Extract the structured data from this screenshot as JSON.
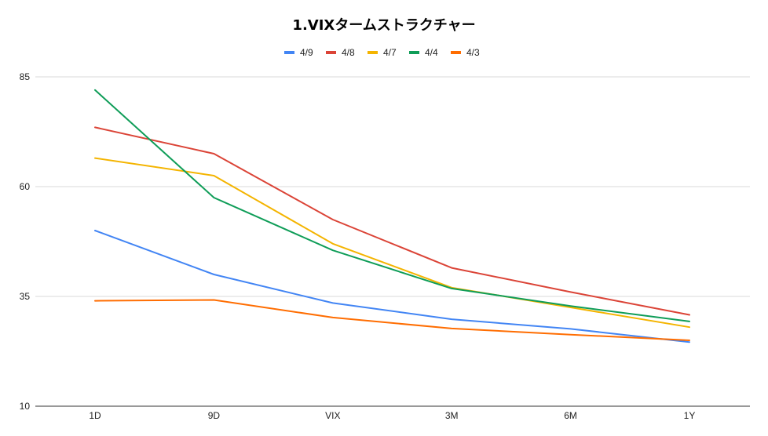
{
  "chart_data": {
    "type": "line",
    "title": "1.VIXタームストラクチャー",
    "xlabel": "",
    "ylabel": "",
    "categories": [
      "1D",
      "9D",
      "VIX",
      "3M",
      "6M",
      "1Y"
    ],
    "ylim": [
      10,
      85
    ],
    "yticks": [
      10,
      35,
      60,
      85
    ],
    "grid": true,
    "legend_position": "top",
    "series": [
      {
        "name": "4/9",
        "color": "#4285f4",
        "values": [
          50,
          40,
          33.5,
          29.8,
          27.6,
          24.6
        ]
      },
      {
        "name": "4/8",
        "color": "#db4437",
        "values": [
          73.5,
          67.5,
          52.5,
          41.5,
          36,
          30.8
        ]
      },
      {
        "name": "4/7",
        "color": "#f4b400",
        "values": [
          66.5,
          62.5,
          47,
          37,
          32.5,
          28
        ]
      },
      {
        "name": "4/4",
        "color": "#0f9d58",
        "values": [
          82,
          57.5,
          45.5,
          36.8,
          32.8,
          29.3
        ]
      },
      {
        "name": "4/3",
        "color": "#ff6d01",
        "values": [
          34,
          34.2,
          30.2,
          27.7,
          26.3,
          25
        ]
      }
    ]
  }
}
